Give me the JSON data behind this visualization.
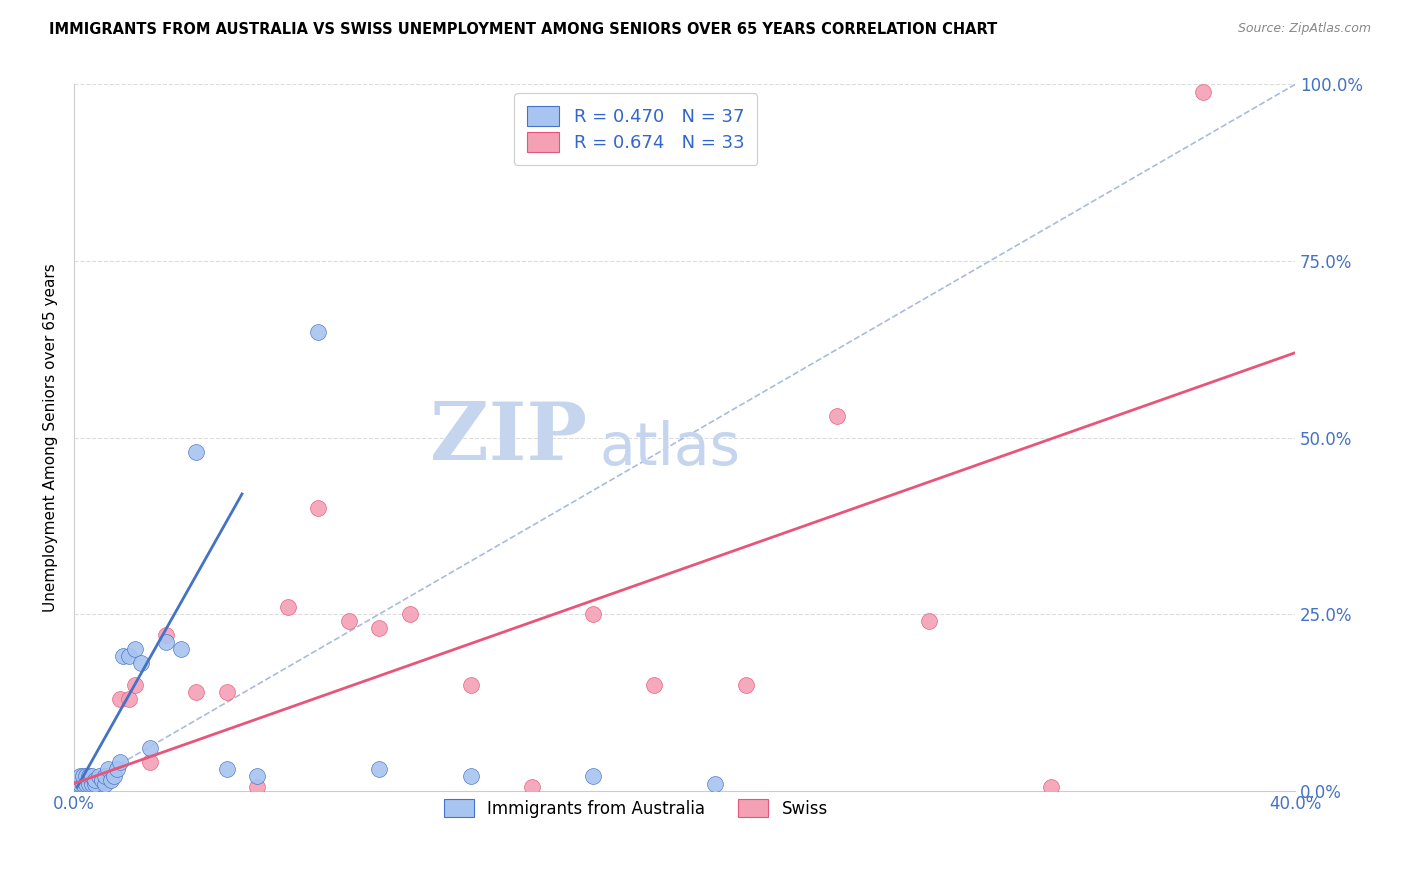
{
  "title": "IMMIGRANTS FROM AUSTRALIA VS SWISS UNEMPLOYMENT AMONG SENIORS OVER 65 YEARS CORRELATION CHART",
  "source": "Source: ZipAtlas.com",
  "ylabel": "Unemployment Among Seniors over 65 years",
  "xlim": [
    0.0,
    0.4
  ],
  "ylim": [
    0.0,
    1.0
  ],
  "ytick_positions": [
    0.0,
    0.25,
    0.5,
    0.75,
    1.0
  ],
  "ytick_labels_right": [
    "0.0%",
    "25.0%",
    "50.0%",
    "75.0%",
    "100.0%"
  ],
  "blue_R": 0.47,
  "blue_N": 37,
  "pink_R": 0.674,
  "pink_N": 33,
  "blue_color": "#A8C4F0",
  "pink_color": "#F4A0B5",
  "blue_trend_color": "#4472C4",
  "pink_trend_color": "#E8557A",
  "diag_color": "#AABBDD",
  "legend_label_blue": "Immigrants from Australia",
  "legend_label_pink": "Swiss",
  "watermark_zip": "ZIP",
  "watermark_atlas": "atlas",
  "watermark_color_zip": "#C5D5EE",
  "watermark_color_atlas": "#C5D5EE",
  "blue_x": [
    0.001,
    0.002,
    0.002,
    0.003,
    0.003,
    0.004,
    0.004,
    0.005,
    0.005,
    0.006,
    0.006,
    0.007,
    0.007,
    0.008,
    0.009,
    0.01,
    0.01,
    0.011,
    0.012,
    0.013,
    0.014,
    0.015,
    0.016,
    0.018,
    0.02,
    0.022,
    0.025,
    0.03,
    0.035,
    0.04,
    0.05,
    0.06,
    0.08,
    0.1,
    0.13,
    0.17,
    0.21
  ],
  "blue_y": [
    0.01,
    0.01,
    0.02,
    0.01,
    0.02,
    0.01,
    0.02,
    0.01,
    0.02,
    0.01,
    0.02,
    0.01,
    0.015,
    0.02,
    0.015,
    0.01,
    0.02,
    0.03,
    0.015,
    0.02,
    0.03,
    0.04,
    0.19,
    0.19,
    0.2,
    0.18,
    0.06,
    0.21,
    0.2,
    0.48,
    0.03,
    0.02,
    0.65,
    0.03,
    0.02,
    0.02,
    0.01
  ],
  "pink_x": [
    0.001,
    0.002,
    0.003,
    0.004,
    0.005,
    0.006,
    0.007,
    0.008,
    0.009,
    0.01,
    0.012,
    0.015,
    0.018,
    0.02,
    0.025,
    0.03,
    0.04,
    0.05,
    0.06,
    0.07,
    0.08,
    0.09,
    0.1,
    0.11,
    0.13,
    0.15,
    0.17,
    0.19,
    0.22,
    0.25,
    0.28,
    0.32,
    0.37
  ],
  "pink_y": [
    0.01,
    0.01,
    0.01,
    0.01,
    0.01,
    0.01,
    0.01,
    0.01,
    0.01,
    0.02,
    0.02,
    0.13,
    0.13,
    0.15,
    0.04,
    0.22,
    0.14,
    0.14,
    0.005,
    0.26,
    0.4,
    0.24,
    0.23,
    0.25,
    0.15,
    0.005,
    0.25,
    0.15,
    0.15,
    0.53,
    0.24,
    0.005,
    0.99
  ],
  "blue_trend_x": [
    0.001,
    0.055
  ],
  "blue_trend_y": [
    0.005,
    0.42
  ],
  "pink_trend_x": [
    0.0,
    0.4
  ],
  "pink_trend_y": [
    0.01,
    0.62
  ],
  "diag_trend_x": [
    0.0,
    0.4
  ],
  "diag_trend_y": [
    0.0,
    1.0
  ]
}
